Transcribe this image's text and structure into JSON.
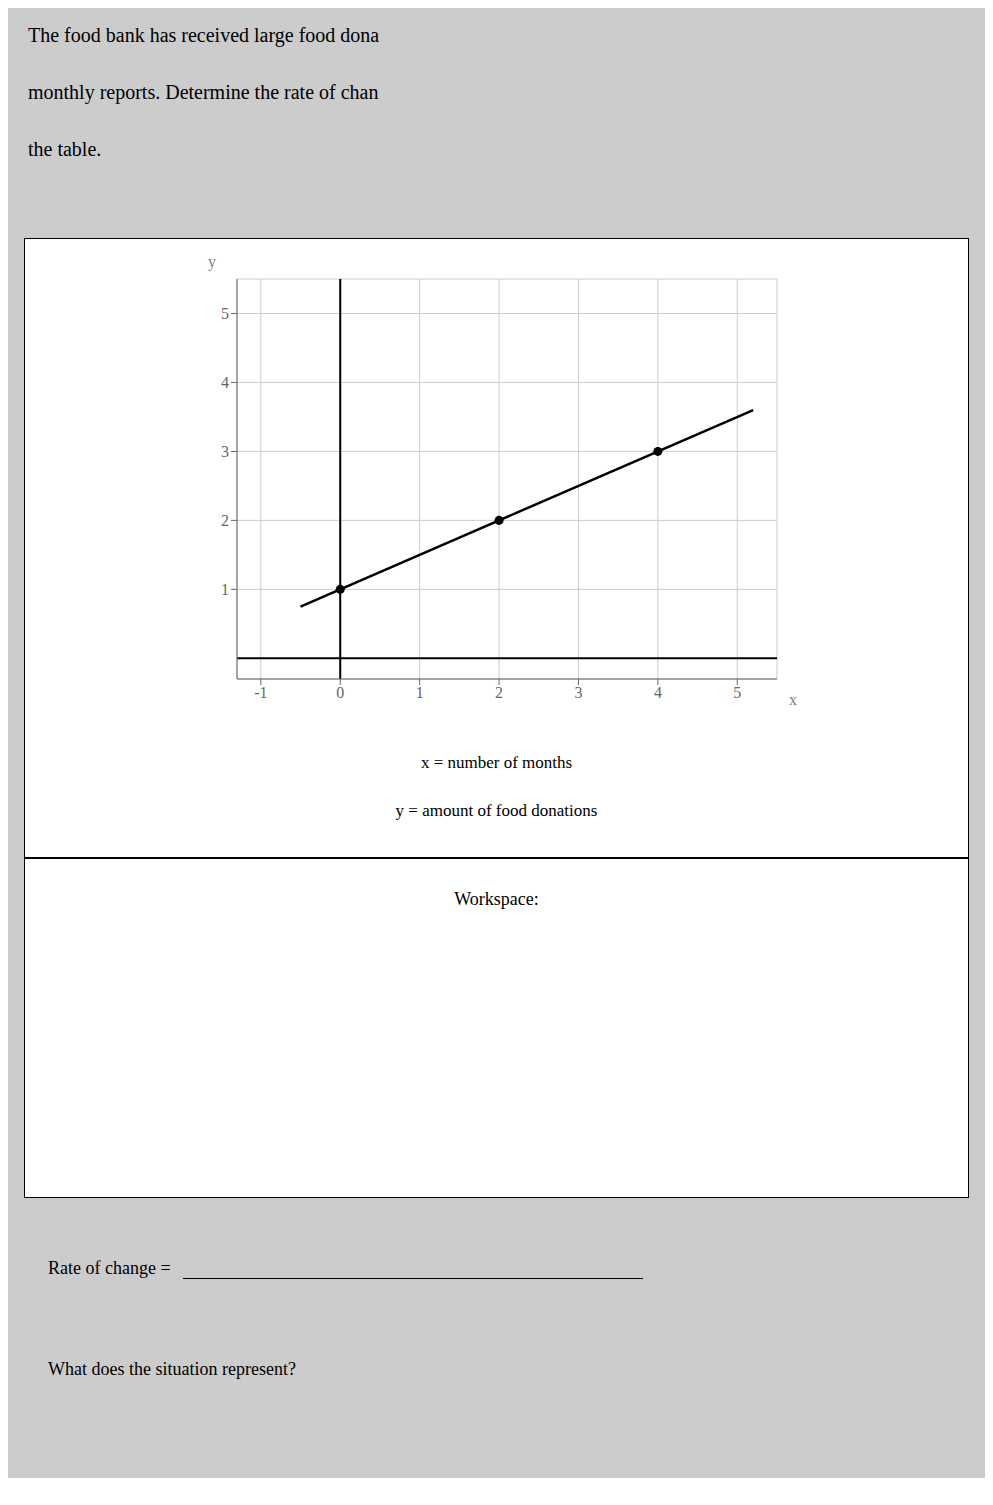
{
  "chart_data": {
    "type": "scatter",
    "title": [
      "The food bank has received large food dona",
      "monthly reports. Determine the rate of chan",
      "the table."
    ],
    "x_label": "x",
    "y_label": "y",
    "annotations": [
      "x = number of months",
      "y = amount of food donations",
      "Workspace:",
      "Rate of change = ",
      "What does the situation represent?"
    ],
    "series": [
      {
        "type": "scatter",
        "x": [
          0,
          2,
          4
        ],
        "values": [
          1,
          2,
          3
        ],
        "color": "#000000"
      },
      {
        "type": "line",
        "x": [
          -0.5,
          5.2
        ],
        "values": [
          0.75,
          3.6
        ],
        "color": "#000000"
      }
    ],
    "xlim": [
      -1.3,
      5.5
    ],
    "ylim": [
      -0.3,
      5.5
    ],
    "xticks": [
      -1,
      0,
      1,
      2,
      3,
      4,
      5
    ],
    "yticks": [
      1,
      2,
      3,
      4,
      5
    ],
    "grid": true
  }
}
